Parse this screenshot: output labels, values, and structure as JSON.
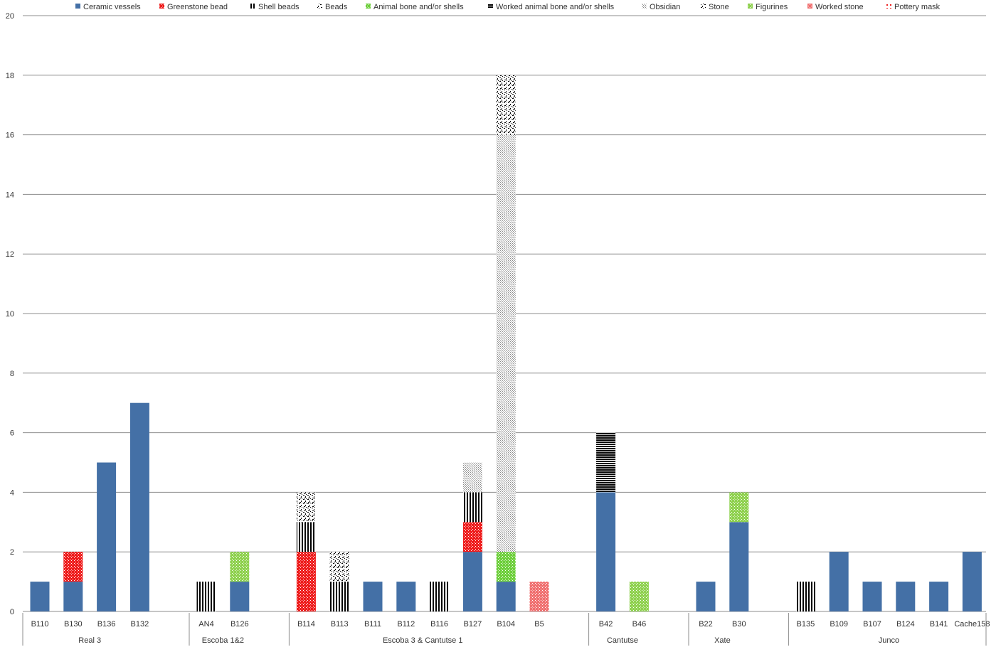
{
  "chart_data": {
    "type": "bar",
    "stacked": true,
    "ylim": [
      0,
      20
    ],
    "ytick_step": 2,
    "grid": true,
    "legend_position": "top",
    "legend": [
      {
        "name": "Ceramic vessels",
        "color": "#4470a6",
        "pattern": "solid"
      },
      {
        "name": "Greenstone bead",
        "color": "#ee1c1c",
        "pattern": "dots"
      },
      {
        "name": "Shell beads",
        "color": "#000000",
        "pattern": "vertical-stripes"
      },
      {
        "name": "Beads",
        "color": "#000000",
        "pattern": "speckle"
      },
      {
        "name": "Animal bone and/or shells",
        "color": "#6ecf3c",
        "pattern": "dots"
      },
      {
        "name": "Worked animal bone and/or shells",
        "color": "#000000",
        "pattern": "horizontal-stripes"
      },
      {
        "name": "Obsidian",
        "color": "#8a8a8a",
        "pattern": "fine-dots"
      },
      {
        "name": "Stone",
        "color": "#000000",
        "pattern": "speckle"
      },
      {
        "name": "Figurines",
        "color": "#8fd14f",
        "pattern": "dots"
      },
      {
        "name": "Worked stone",
        "color": "#f07070",
        "pattern": "dots"
      },
      {
        "name": "Pottery mask",
        "color": "#ee1c1c",
        "pattern": "sparse-dots"
      }
    ],
    "groups": [
      {
        "name": "Real 3",
        "categories": [
          "B110",
          "B130",
          "B136",
          "B132"
        ]
      },
      {
        "name": "Escoba 1&2",
        "categories": [
          "AN4",
          "B126"
        ]
      },
      {
        "name": "Escoba 3 & Cantutse 1",
        "categories": [
          "B114",
          "B113",
          "B111",
          "B112",
          "B116",
          "B127",
          "B104",
          "B5"
        ]
      },
      {
        "name": "Cantutse",
        "categories": [
          "B42",
          "B46"
        ]
      },
      {
        "name": "Xate",
        "categories": [
          "B22",
          "B30"
        ]
      },
      {
        "name": "Junco",
        "categories": [
          "B135",
          "B109",
          "B107",
          "B124",
          "B141",
          "Cache158"
        ]
      }
    ],
    "categories": [
      "B110",
      "B130",
      "B136",
      "B132",
      "AN4",
      "B126",
      "B114",
      "B113",
      "B111",
      "B112",
      "B116",
      "B127",
      "B104",
      "B5",
      "B42",
      "B46",
      "B22",
      "B30",
      "B135",
      "B109",
      "B107",
      "B124",
      "B141",
      "Cache158"
    ],
    "series": [
      {
        "name": "Ceramic vessels",
        "values": [
          1,
          1,
          5,
          7,
          0,
          1,
          0,
          0,
          1,
          1,
          0,
          2,
          1,
          0,
          4,
          0,
          1,
          3,
          0,
          2,
          1,
          1,
          1,
          2
        ]
      },
      {
        "name": "Greenstone bead",
        "values": [
          0,
          1,
          0,
          0,
          0,
          0,
          2,
          0,
          0,
          0,
          0,
          1,
          0,
          0,
          0,
          0,
          0,
          0,
          0,
          0,
          0,
          0,
          0,
          0
        ]
      },
      {
        "name": "Shell beads",
        "values": [
          0,
          0,
          0,
          0,
          1,
          0,
          1,
          1,
          0,
          0,
          1,
          1,
          0,
          0,
          0,
          0,
          0,
          0,
          1,
          0,
          0,
          0,
          0,
          0
        ]
      },
      {
        "name": "Beads",
        "values": [
          0,
          0,
          0,
          0,
          0,
          0,
          0,
          0,
          0,
          0,
          0,
          0,
          0,
          0,
          0,
          0,
          0,
          0,
          0,
          0,
          0,
          0,
          0,
          0
        ]
      },
      {
        "name": "Animal bone and/or shells",
        "values": [
          0,
          0,
          0,
          0,
          0,
          0,
          0,
          0,
          0,
          0,
          0,
          0,
          1,
          0,
          0,
          0,
          0,
          0,
          0,
          0,
          0,
          0,
          0,
          0
        ]
      },
      {
        "name": "Worked animal bone and/or shells",
        "values": [
          0,
          0,
          0,
          0,
          0,
          0,
          0,
          0,
          0,
          0,
          0,
          0,
          0,
          0,
          2,
          0,
          0,
          0,
          0,
          0,
          0,
          0,
          0,
          0
        ]
      },
      {
        "name": "Obsidian",
        "values": [
          0,
          0,
          0,
          0,
          0,
          0,
          0,
          0,
          0,
          0,
          0,
          1,
          14,
          0,
          0,
          0,
          0,
          0,
          0,
          0,
          0,
          0,
          0,
          0
        ]
      },
      {
        "name": "Stone",
        "values": [
          0,
          0,
          0,
          0,
          0,
          0,
          1,
          1,
          0,
          0,
          0,
          0,
          2,
          0,
          0,
          0,
          0,
          0,
          0,
          0,
          0,
          0,
          0,
          0
        ]
      },
      {
        "name": "Figurines",
        "values": [
          0,
          0,
          0,
          0,
          0,
          1,
          0,
          0,
          0,
          0,
          0,
          0,
          0,
          0,
          0,
          1,
          0,
          1,
          0,
          0,
          0,
          0,
          0,
          0
        ]
      },
      {
        "name": "Worked stone",
        "values": [
          0,
          0,
          0,
          0,
          0,
          0,
          0,
          0,
          0,
          0,
          0,
          0,
          0,
          1,
          0,
          0,
          0,
          0,
          0,
          0,
          0,
          0,
          0,
          0
        ]
      },
      {
        "name": "Pottery mask",
        "values": [
          0,
          0,
          0,
          0,
          0,
          0,
          0,
          0,
          0,
          0,
          0,
          0,
          0,
          0,
          0,
          0,
          0,
          0,
          0,
          0,
          0,
          0,
          0,
          0
        ]
      }
    ]
  }
}
